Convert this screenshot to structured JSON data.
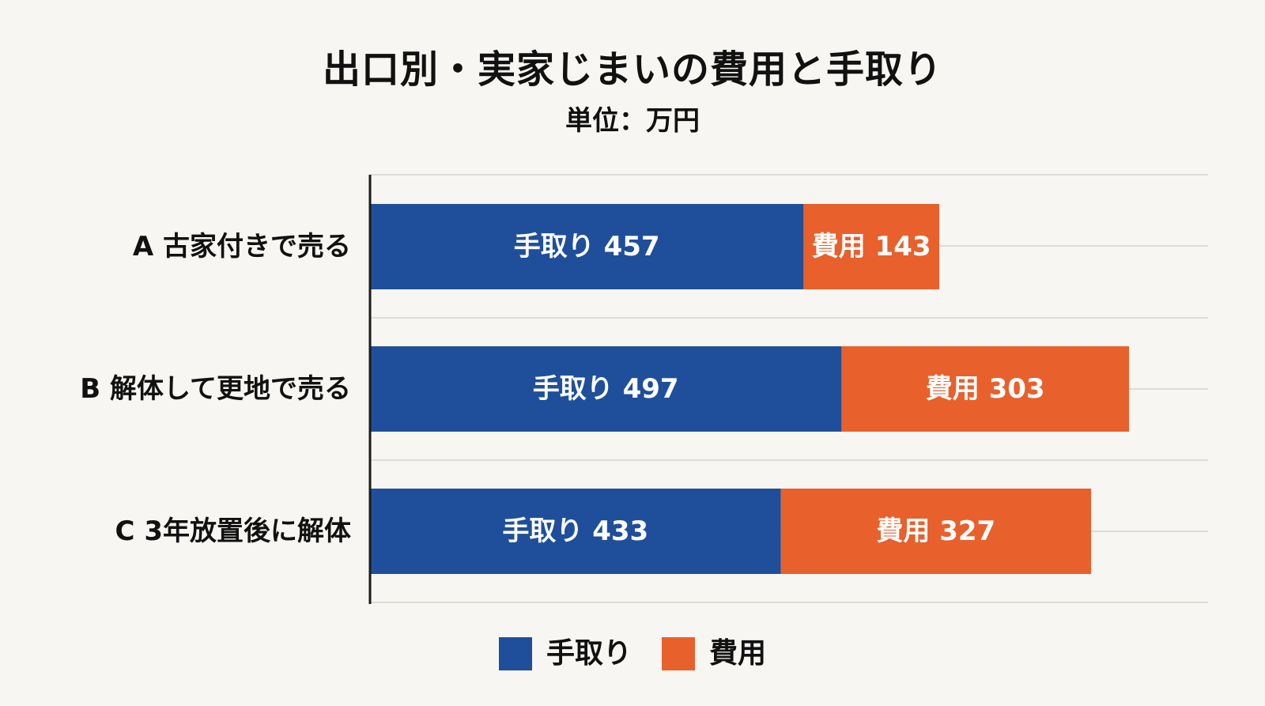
{
  "chart_data": {
    "type": "bar",
    "orientation": "horizontal",
    "stacked": true,
    "title": "出口別・実家じまいの費用と手取り",
    "subtitle": "単位：万円",
    "categories": [
      "A 古家付きで売る",
      "B 解体して更地で売る",
      "C 3年放置後に解体"
    ],
    "series": [
      {
        "name": "手取り",
        "color": "#1F4F9A",
        "values": [
          457,
          497,
          433
        ],
        "data_labels": [
          "手取り 457",
          "手取り 497",
          "手取り 433"
        ]
      },
      {
        "name": "費用",
        "color": "#E8602C",
        "values": [
          143,
          303,
          327
        ],
        "data_labels": [
          "費用 143",
          "費用 303",
          "費用 327"
        ]
      }
    ],
    "xlim": [
      0,
      870
    ],
    "grid": true,
    "legend_position": "bottom"
  }
}
